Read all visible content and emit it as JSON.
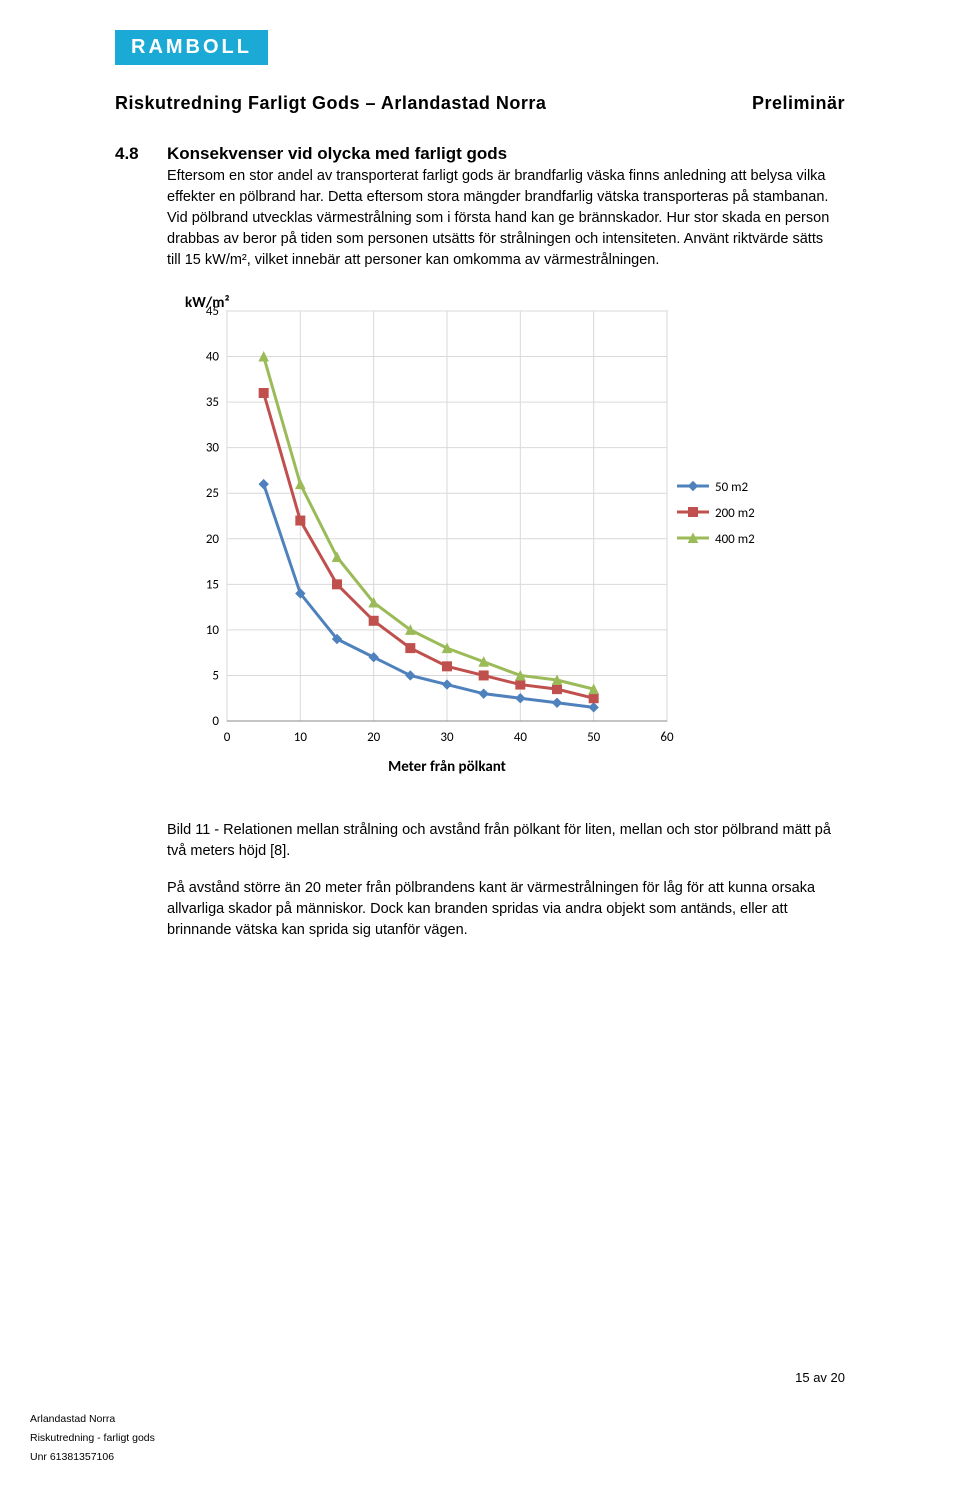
{
  "logo_text": "RAMBOLL",
  "header": {
    "title": "Riskutredning Farligt Gods – Arlandastad Norra",
    "status": "Preliminär"
  },
  "section": {
    "number": "4.8",
    "title": "Konsekvenser vid olycka med farligt gods"
  },
  "paragraphs": {
    "p1": "Eftersom en stor andel av transporterat farligt gods är brandfarlig väska finns anledning att belysa vilka effekter en pölbrand har. Detta eftersom stora mängder brandfarlig vätska transporteras på stambanan. Vid pölbrand utvecklas värmestrålning som i första hand kan ge brännskador. Hur stor skada en person drabbas av beror på tiden som personen utsätts för strålningen och intensiteten. Använt riktvärde sätts till 15 kW/m², vilket innebär att personer kan omkomma av värmestrålningen.",
    "caption": "Bild 11 - Relationen mellan strålning och avstånd från pölkant för liten, mellan och stor pölbrand mätt på två meters höjd [8].",
    "p2": "På avstånd större än 20 meter från pölbrandens kant är värmestrålningen för låg för att kunna orsaka allvarliga skador på människor. Dock kan branden spridas via andra objekt som antänds, eller att brinnande vätska kan sprida sig utanför vägen."
  },
  "chart": {
    "type": "line",
    "y_label": "kW/m²",
    "x_label": "Meter från pölkant",
    "x_ticks": [
      0,
      10,
      20,
      30,
      40,
      50,
      60
    ],
    "y_ticks": [
      0,
      5,
      10,
      15,
      20,
      25,
      30,
      35,
      40,
      45
    ],
    "xlim": [
      0,
      60
    ],
    "ylim": [
      0,
      45
    ],
    "plot_bg": "#ffffff",
    "grid_color": "#d9d9d9",
    "axis_color": "#888888",
    "tick_fontsize": 13,
    "label_fontsize": 15,
    "legend_fontsize": 13,
    "series": [
      {
        "name": "50 m2",
        "color": "#4f81bd",
        "marker": "diamond",
        "line_width": 3,
        "marker_size": 9,
        "points": [
          [
            5,
            26
          ],
          [
            10,
            14
          ],
          [
            15,
            9
          ],
          [
            20,
            7
          ],
          [
            25,
            5
          ],
          [
            30,
            4
          ],
          [
            35,
            3
          ],
          [
            40,
            2.5
          ],
          [
            45,
            2
          ],
          [
            50,
            1.5
          ]
        ]
      },
      {
        "name": "200 m2",
        "color": "#c0504d",
        "marker": "square",
        "line_width": 3,
        "marker_size": 9,
        "points": [
          [
            5,
            36
          ],
          [
            10,
            22
          ],
          [
            15,
            15
          ],
          [
            20,
            11
          ],
          [
            25,
            8
          ],
          [
            30,
            6
          ],
          [
            35,
            5
          ],
          [
            40,
            4
          ],
          [
            45,
            3.5
          ],
          [
            50,
            2.5
          ]
        ]
      },
      {
        "name": "400 m2",
        "color": "#9bbb59",
        "marker": "triangle",
        "line_width": 3,
        "marker_size": 9,
        "points": [
          [
            5,
            40
          ],
          [
            10,
            26
          ],
          [
            15,
            18
          ],
          [
            20,
            13
          ],
          [
            25,
            10
          ],
          [
            30,
            8
          ],
          [
            35,
            6.5
          ],
          [
            40,
            5
          ],
          [
            45,
            4.5
          ],
          [
            50,
            3.5
          ]
        ]
      }
    ]
  },
  "page_number": "15 av 20",
  "footer": {
    "l1": "Arlandastad Norra",
    "l2": "Riskutredning - farligt gods",
    "l3": "Unr 61381357106"
  }
}
